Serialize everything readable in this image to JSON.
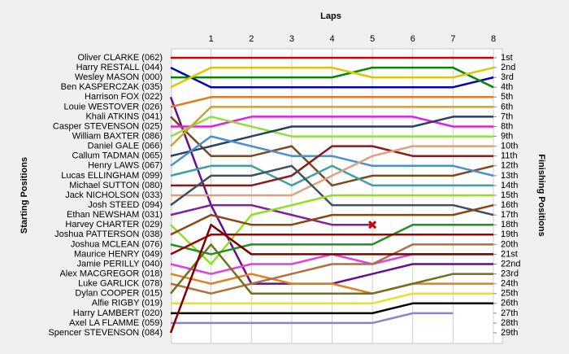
{
  "chart_data": {
    "type": "line",
    "title": "Laps",
    "ylabel": "Starting Positions",
    "y2label": "Finishing Positions",
    "x": [
      0,
      1,
      2,
      3,
      4,
      5,
      6,
      7,
      8
    ],
    "xlim": [
      0,
      8
    ],
    "xticks": [
      1,
      2,
      3,
      4,
      5,
      6,
      7,
      8
    ],
    "ylim": [
      29,
      1
    ],
    "y2lim": [
      29,
      1
    ],
    "y2ticks": [
      {
        "value": 1,
        "label": "1st"
      },
      {
        "value": 2,
        "label": "2nd"
      },
      {
        "value": 3,
        "label": "3rd"
      },
      {
        "value": 4,
        "label": "4th"
      },
      {
        "value": 5,
        "label": "5th"
      },
      {
        "value": 6,
        "label": "6th"
      },
      {
        "value": 7,
        "label": "7th"
      },
      {
        "value": 8,
        "label": "8th"
      },
      {
        "value": 9,
        "label": "9th"
      },
      {
        "value": 10,
        "label": "10th"
      },
      {
        "value": 11,
        "label": "11th"
      },
      {
        "value": 12,
        "label": "12th"
      },
      {
        "value": 13,
        "label": "13th"
      },
      {
        "value": 14,
        "label": "14th"
      },
      {
        "value": 15,
        "label": "15th"
      },
      {
        "value": 16,
        "label": "16th"
      },
      {
        "value": 17,
        "label": "17th"
      },
      {
        "value": 18,
        "label": "18th"
      },
      {
        "value": 19,
        "label": "19th"
      },
      {
        "value": 20,
        "label": "20th"
      },
      {
        "value": 21,
        "label": "21st"
      },
      {
        "value": 22,
        "label": "22nd"
      },
      {
        "value": 23,
        "label": "23rd"
      },
      {
        "value": 24,
        "label": "24th"
      },
      {
        "value": 25,
        "label": "25th"
      },
      {
        "value": 26,
        "label": "26th"
      },
      {
        "value": 27,
        "label": "27th"
      },
      {
        "value": 28,
        "label": "28th"
      },
      {
        "value": 29,
        "label": "29th"
      }
    ],
    "grid": true,
    "series": [
      {
        "name": "Oliver CLARKE (062)",
        "color": "#d40000",
        "values": [
          1,
          1,
          1,
          1,
          1,
          1,
          1,
          1,
          1
        ]
      },
      {
        "name": "Harry RESTALL (044)",
        "color": "#0000c0",
        "values": [
          2,
          4,
          4,
          4,
          4,
          4,
          4,
          4,
          3
        ]
      },
      {
        "name": "Wesley MASON (000)",
        "color": "#008800",
        "values": [
          3,
          3,
          3,
          3,
          3,
          2,
          2,
          2,
          4
        ]
      },
      {
        "name": "Ben KASPERCZAK (035)",
        "color": "#d8c800",
        "values": [
          4,
          2,
          2,
          2,
          2,
          3,
          3,
          3,
          2
        ]
      },
      {
        "name": "Harrison FOX (022)",
        "color": "#6a0d8a",
        "values": [
          5,
          16,
          24,
          24,
          24,
          23,
          22,
          22,
          22
        ]
      },
      {
        "name": "Louie WESTOVER (026)",
        "color": "#e07a20",
        "values": [
          6,
          5,
          5,
          5,
          5,
          5,
          5,
          5,
          5
        ]
      },
      {
        "name": "Khali ATKINS (041)",
        "color": "#7a4a20",
        "values": [
          7,
          11,
          11,
          10,
          14,
          13,
          13,
          13,
          12
        ]
      },
      {
        "name": "Casper STEVENSON (025)",
        "color": "#e020e0",
        "values": [
          8,
          8,
          7,
          7,
          7,
          7,
          7,
          8,
          8
        ]
      },
      {
        "name": "William BAXTER (086)",
        "color": "#90e040",
        "values": [
          9,
          7,
          8,
          9,
          9,
          9,
          9,
          9,
          9
        ]
      },
      {
        "name": "Daniel GALE (066)",
        "color": "#c8a040",
        "values": [
          10,
          6,
          6,
          6,
          6,
          6,
          6,
          6,
          6
        ]
      },
      {
        "name": "Callum TADMAN (065)",
        "color": "#2a4060",
        "values": [
          11,
          10,
          9,
          8,
          8,
          8,
          8,
          7,
          7
        ]
      },
      {
        "name": "Henry LAWS (067)",
        "color": "#4a90d0",
        "values": [
          12,
          9,
          10,
          11,
          11,
          12,
          12,
          12,
          13
        ]
      },
      {
        "name": "Lucas ELLINGHAM (099)",
        "color": "#40a0a0",
        "values": [
          13,
          12,
          12,
          14,
          12,
          14,
          14,
          14,
          14
        ]
      },
      {
        "name": "Michael SUTTON (080)",
        "color": "#8b1a1a",
        "values": [
          14,
          14,
          14,
          13,
          10,
          10,
          11,
          11,
          11
        ]
      },
      {
        "name": "Jack NICHOLSON (033)",
        "color": "#e0a080",
        "values": [
          15,
          15,
          15,
          15,
          13,
          11,
          10,
          10,
          10
        ]
      },
      {
        "name": "Josh STEED (094)",
        "color": "#405060",
        "values": [
          16,
          13,
          13,
          12,
          16,
          16,
          16,
          16,
          17
        ]
      },
      {
        "name": "Ethan NEWSHAM (031)",
        "color": "#8020a0",
        "values": [
          17,
          16,
          16,
          17,
          18,
          18,
          null,
          null,
          null
        ],
        "end_marker": "x"
      },
      {
        "name": "Harvey CHARTER (029)",
        "color": "#90e020",
        "values": [
          18,
          22,
          17,
          16,
          15,
          15,
          15,
          15,
          15
        ]
      },
      {
        "name": "Joshua PATTERSON (038)",
        "color": "#8b4513",
        "values": [
          19,
          17,
          18,
          18,
          17,
          17,
          17,
          17,
          16
        ]
      },
      {
        "name": "Joshua MCLEAN (076)",
        "color": "#209020",
        "values": [
          20,
          21,
          20,
          20,
          20,
          20,
          18,
          18,
          18
        ]
      },
      {
        "name": "Maurice HENRY (049)",
        "color": "#a00000",
        "values": [
          21,
          19,
          19,
          19,
          19,
          19,
          19,
          19,
          19
        ]
      },
      {
        "name": "Jamie PERILLY (040)",
        "color": "#e040e0",
        "values": [
          22,
          23,
          22,
          22,
          21,
          22,
          21,
          21,
          21
        ]
      },
      {
        "name": "Alex MACGREGOR (018)",
        "color": "#e08020",
        "values": [
          23,
          24,
          23,
          24,
          24,
          25,
          24,
          24,
          24
        ]
      },
      {
        "name": "Luke GARLICK (078)",
        "color": "#b07040",
        "values": [
          24,
          25,
          24,
          23,
          22,
          22,
          20,
          20,
          20
        ]
      },
      {
        "name": "Dylan COOPER (015)",
        "color": "#707020",
        "values": [
          25,
          20,
          25,
          25,
          25,
          25,
          24,
          23,
          23
        ]
      },
      {
        "name": "Alfie RIGBY (019)",
        "color": "#e8e020",
        "values": [
          26,
          26,
          26,
          26,
          26,
          26,
          25,
          25,
          25
        ]
      },
      {
        "name": "Harry LAMBERT (020)",
        "color": "#000000",
        "values": [
          27,
          27,
          27,
          27,
          27,
          27,
          26,
          26,
          26
        ]
      },
      {
        "name": "Axel LA FLAMME (059)",
        "color": "#9080d0",
        "values": [
          28,
          28,
          28,
          28,
          28,
          28,
          27,
          27,
          null
        ]
      },
      {
        "name": "Spencer STEVENSON (084)",
        "color": "#800000",
        "values": [
          29,
          18,
          21,
          21,
          21,
          21,
          21,
          21,
          21
        ]
      }
    ]
  }
}
